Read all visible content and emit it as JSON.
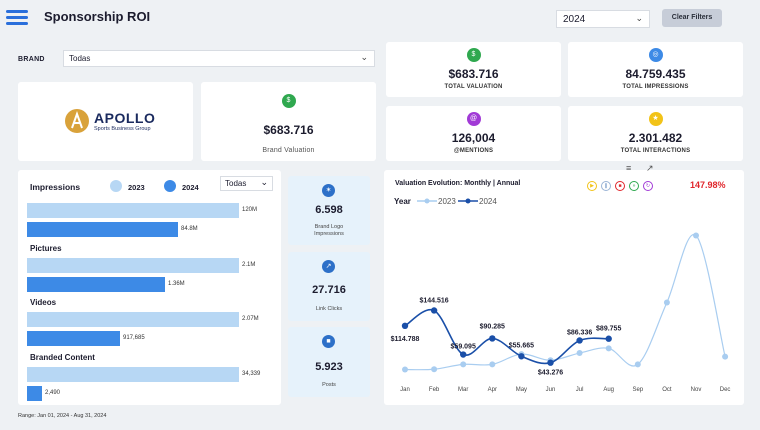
{
  "header": {
    "title": "Sponsorship ROI",
    "year_selected": "2024",
    "clear_filters_label": "Clear Filters",
    "icons": {
      "menu": "hamburger-menu-icon",
      "chevron": "chevron-down-icon"
    }
  },
  "filter": {
    "brand_label": "BRAND",
    "brand_value": "Todas"
  },
  "brand_logo": {
    "name": "APOLLO",
    "tagline": "Sports Business Group"
  },
  "kpis": {
    "brand_valuation": {
      "value": "$683.716",
      "label": "Brand Valuation",
      "color": "#2fa84f",
      "icon": "dollar-icon"
    },
    "total_valuation": {
      "value": "$683.716",
      "label": "TOTAL VALUATION",
      "color": "#2fa84f",
      "icon": "dollar-icon"
    },
    "total_impressions": {
      "value": "84.759.435",
      "label": "TOTAL IMPRESSIONS",
      "color": "#3d8ae6",
      "icon": "eye-icon"
    },
    "mentions": {
      "value": "126,004",
      "label": "@MENTIONS",
      "color": "#a13ad6",
      "icon": "at-icon"
    },
    "total_interactions": {
      "value": "2.301.482",
      "label": "TOTAL INTERACTIONS",
      "color": "#f2c318",
      "icon": "interaction-icon"
    }
  },
  "impressions_panel": {
    "title": "Impressions",
    "legend_2023": "2023",
    "legend_2024": "2024",
    "filter_value": "Todas",
    "colors": {
      "y2023": "#b7d7f4",
      "y2024": "#3d8ae6"
    },
    "categories": [
      {
        "label": "",
        "v2023": "120M",
        "v2024": "84.8M",
        "f2023": 1.0,
        "f2024": 0.71
      },
      {
        "label": "Pictures",
        "v2023": "2.1M",
        "v2024": "1.36M",
        "f2023": 1.0,
        "f2024": 0.65
      },
      {
        "label": "Videos",
        "v2023": "2.07M",
        "v2024": "917,685",
        "f2023": 1.0,
        "f2024": 0.44
      },
      {
        "label": "Branded Content",
        "v2023": "34,339",
        "v2024": "2,490",
        "f2023": 1.0,
        "f2024": 0.07
      }
    ],
    "range": "Range: Jan 01, 2024 - Aug 31, 2024"
  },
  "side_metrics": [
    {
      "value": "6.598",
      "label_line1": "Brand Logo",
      "label_line2": "Impressions",
      "icon": "logo-target-icon"
    },
    {
      "value": "27.716",
      "label_line1": "Link Clicks",
      "label_line2": "",
      "icon": "link-icon"
    },
    {
      "value": "5.923",
      "label_line1": "Posts",
      "label_line2": "",
      "icon": "post-icon"
    }
  ],
  "valuation_chart": {
    "title": "Valuation Evolution: Monthly | Annual",
    "change": "147.98%",
    "legend_title": "Year",
    "toolbar_icons": [
      "filter-icon",
      "expand-icon"
    ],
    "control_icons": [
      "play-icon",
      "pause-icon",
      "stop-icon",
      "next-icon",
      "loop-icon"
    ]
  },
  "chart_data": {
    "type": "line",
    "x": [
      "Jan",
      "Feb",
      "Mar",
      "Apr",
      "May",
      "Jun",
      "Jul",
      "Aug",
      "Sep",
      "Oct",
      "Nov",
      "Dec"
    ],
    "series": [
      {
        "name": "2023",
        "color": "#a9cdf0",
        "values": [
          30000,
          30500,
          40000,
          40000,
          60000,
          48000,
          62000,
          71000,
          40000,
          160000,
          290000,
          55000
        ]
      },
      {
        "name": "2024",
        "color": "#1a4fa8",
        "values": [
          114788,
          144516,
          59095,
          90285,
          55665,
          43276,
          86336,
          89755
        ]
      }
    ],
    "labels": [
      {
        "x": "Jan",
        "text": "$114.788"
      },
      {
        "x": "Feb",
        "text": "$144.516"
      },
      {
        "x": "Mar",
        "text": "$59.095"
      },
      {
        "x": "Apr",
        "text": "$90.285"
      },
      {
        "x": "May",
        "text": "$55.665"
      },
      {
        "x": "Jun",
        "text": "$43.276"
      },
      {
        "x": "Jul",
        "text": "$86.336"
      },
      {
        "x": "Aug",
        "text": "$89.755"
      }
    ],
    "ylim": [
      0,
      320000
    ],
    "grid": false,
    "legend": "top-left"
  }
}
